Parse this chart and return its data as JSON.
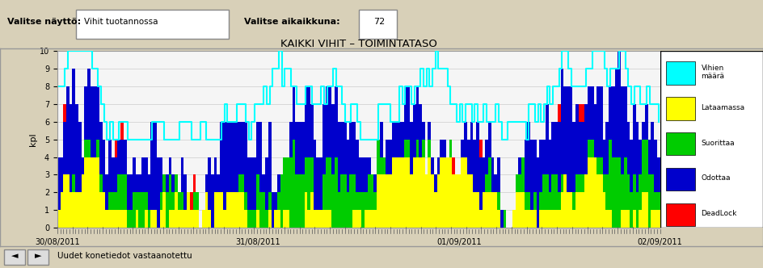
{
  "title": "KAIKKI VIHIT – TOIMINTATASO",
  "ylabel": "kpl",
  "ylim": [
    0,
    10
  ],
  "yticks": [
    0,
    1,
    2,
    3,
    4,
    5,
    6,
    7,
    8,
    9,
    10
  ],
  "x_dates": [
    "30/08/2011",
    "31/08/2011",
    "01/09/2011",
    "02/09/2011"
  ],
  "header_label1": "Valitse näyttö:",
  "header_input1": "Vihit tuotannossa",
  "header_label2": "Valitse aikaikkuna:",
  "header_input2": "72",
  "footer_text": "Uudet konetiedot vastaanotettu",
  "legend_entries": [
    "Vihien\nmäärä",
    "Lataamassa",
    "Suorittaa",
    "Odottaa",
    "DeadLock"
  ],
  "legend_colors": [
    "#00FFFF",
    "#FFFF00",
    "#00CC00",
    "#0000CC",
    "#FF0000"
  ],
  "bar_colors": {
    "cyan": "#00FFFF",
    "yellow": "#FFFF00",
    "green": "#00CC00",
    "blue": "#0000CC",
    "red": "#FF0000"
  },
  "bg_color": "#D8D0B8",
  "plot_bg": "#F5F5F5",
  "header_bg": "#F0F0F0",
  "date_bar_bg": "#C8A0A0",
  "n_bars": 200,
  "seed": 42
}
